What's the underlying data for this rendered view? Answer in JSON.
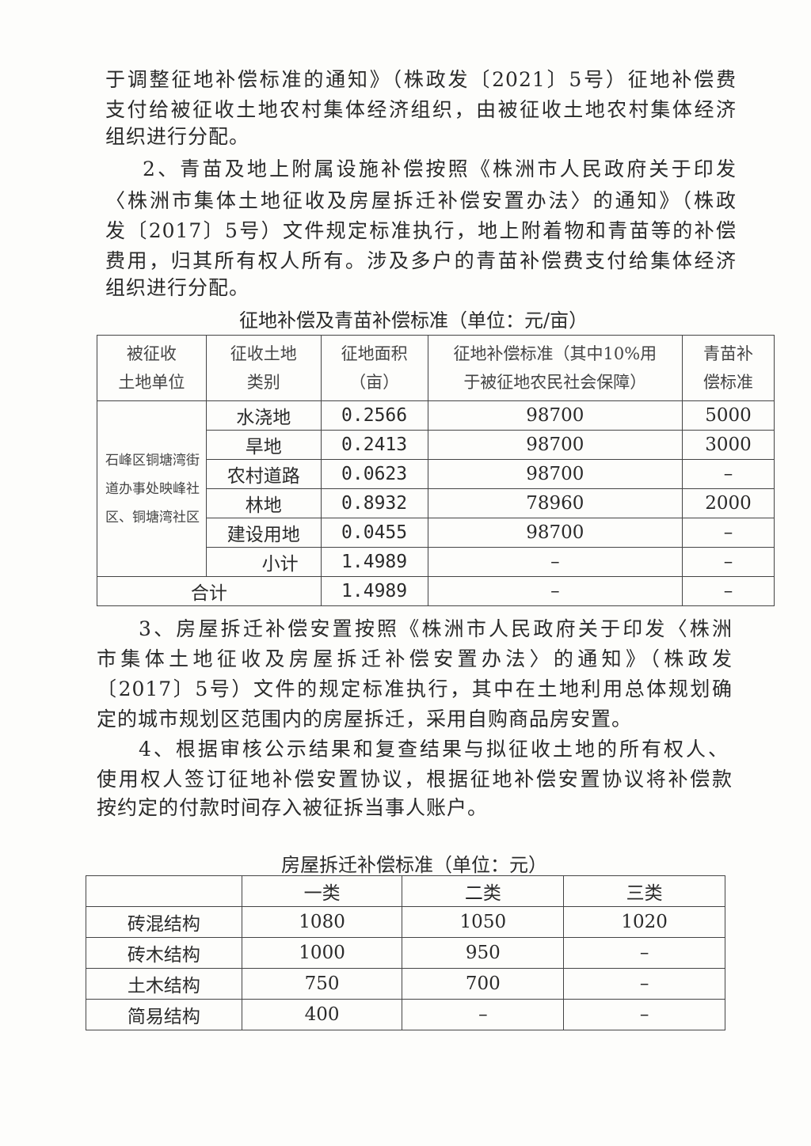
{
  "para1_lines": [
    "于调整征地补偿标准的通知》（株政发〔2021〕5号）征地补偿费",
    "支付给被征收土地农村集体经济组织，由被征收土地农村集体经济",
    "组织进行分配。"
  ],
  "para2_lines": [
    "2、青苗及地上附属设施补偿按照《株洲市人民政府关于印发",
    "〈株洲市集体土地征收及房屋拆迁补偿安置办法〉的通知》（株政",
    "发〔2017〕5号）文件规定标准执行，地上附着物和青苗等的补偿",
    "费用，归其所有权人所有。涉及多户的青苗补偿费支付给集体经济",
    "组织进行分配。"
  ],
  "table1": {
    "title": "征地补偿及青苗补偿标准（单位：元/亩）",
    "headers": [
      "被征收\n土地单位",
      "征收土地\n类别",
      "征地面积\n（亩）",
      "征地补偿标准（其中10%用\n于被征地农民社会保障）",
      "青苗补\n偿标准"
    ],
    "unit_name": "石峰区铜塘湾街道办事处映峰社区、铜塘湾社区",
    "rows": [
      {
        "type": "水浇地",
        "area": "0.2566",
        "standard": "98700",
        "crop": "5000"
      },
      {
        "type": "旱地",
        "area": "0.2413",
        "standard": "98700",
        "crop": "3000"
      },
      {
        "type": "农村道路",
        "area": "0.0623",
        "standard": "98700",
        "crop": "–"
      },
      {
        "type": "林地",
        "area": "0.8932",
        "standard": "78960",
        "crop": "2000"
      },
      {
        "type": "建设用地",
        "area": "0.0455",
        "standard": "98700",
        "crop": "–"
      },
      {
        "type": "小计",
        "area": "1.4989",
        "standard": "–",
        "crop": "–"
      }
    ],
    "total": {
      "label": "合计",
      "area": "1.4989",
      "standard": "–",
      "crop": "–"
    }
  },
  "para3_lines": [
    "3、房屋拆迁补偿安置按照《株洲市人民政府关于印发〈株洲",
    "市集体土地征收及房屋拆迁补偿安置办法〉的通知》（株政发",
    "〔2017〕5号）文件的规定标准执行，其中在土地利用总体规划确",
    "定的城市规划区范围内的房屋拆迁，采用自购商品房安置。"
  ],
  "para4_lines": [
    "4、根据审核公示结果和复查结果与拟征收土地的所有权人、",
    "使用权人签订征地补偿安置协议，根据征地补偿安置协议将补偿款",
    "按约定的付款时间存入被征拆当事人账户。"
  ],
  "table2": {
    "title": "房屋拆迁补偿标准（单位：元）",
    "headers": [
      "",
      "一类",
      "二类",
      "三类"
    ],
    "rows": [
      [
        "砖混结构",
        "1080",
        "1050",
        "1020"
      ],
      [
        "砖木结构",
        "1000",
        "950",
        "–"
      ],
      [
        "土木结构",
        "750",
        "700",
        "–"
      ],
      [
        "简易结构",
        "400",
        "–",
        "–"
      ]
    ]
  }
}
